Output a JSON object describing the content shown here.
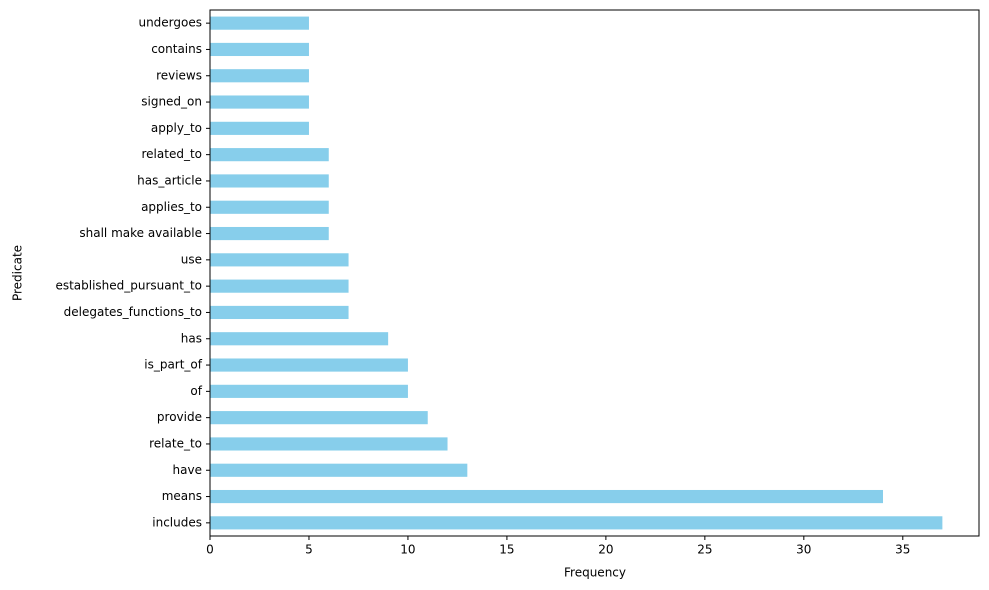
{
  "chart_data": {
    "type": "barh",
    "x_label": "Frequency",
    "y_label": "Predicate",
    "categories": [
      "includes",
      "means",
      "have",
      "relate_to",
      "provide",
      "of",
      "is_part_of",
      "has",
      "delegates_functions_to",
      "established_pursuant_to",
      "use",
      "shall make available",
      "applies_to",
      "has_article",
      "related_to",
      "apply_to",
      "signed_on",
      "reviews",
      "contains",
      "undergoes"
    ],
    "values": [
      37,
      34,
      13,
      12,
      11,
      10,
      10,
      9,
      7,
      7,
      7,
      6,
      6,
      6,
      6,
      5,
      5,
      5,
      5,
      5
    ],
    "color": "#87ceeb",
    "xlim": [
      0,
      38.85
    ],
    "xticks": [
      0,
      5,
      10,
      15,
      20,
      25,
      30,
      35
    ],
    "grid": false
  }
}
